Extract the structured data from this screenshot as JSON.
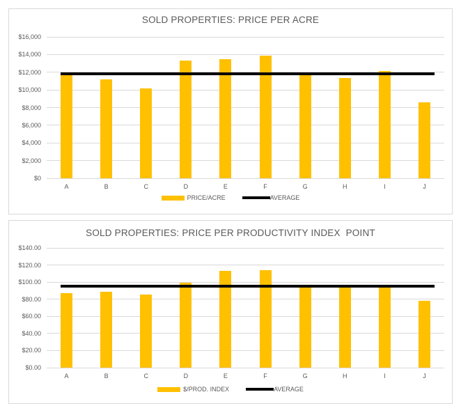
{
  "colors": {
    "bar": "#FFC000",
    "average_line": "#000000",
    "gridline": "#D9D9D9",
    "panel_border": "#D9D9D9",
    "axis_text": "#595959",
    "title_text": "#595959",
    "background": "#FFFFFF"
  },
  "chart_data": [
    {
      "type": "bar",
      "title": "SOLD PROPERTIES: PRICE PER ACRE",
      "categories": [
        "A",
        "B",
        "C",
        "D",
        "E",
        "F",
        "G",
        "H",
        "I",
        "J"
      ],
      "series": [
        {
          "name": "PRICE/ACRE",
          "type": "bar",
          "color": "#FFC000",
          "values": [
            11900,
            11200,
            10150,
            13300,
            13450,
            13850,
            11700,
            11350,
            12150,
            8600
          ]
        },
        {
          "name": "AVERAGE",
          "type": "line",
          "color": "#000000",
          "value": 11800
        }
      ],
      "ylim": [
        0,
        16000
      ],
      "ytick_step": 2000,
      "yticks": [
        "$16,000",
        "$14,000",
        "$12,000",
        "$10,000",
        "$8,000",
        "$6,000",
        "$4,000",
        "$2,000",
        "$0"
      ],
      "grid": true,
      "legend_position": "bottom"
    },
    {
      "type": "bar",
      "title": "SOLD PROPERTIES: PRICE PER PRODUCTIVITY INDEX  POINT",
      "categories": [
        "A",
        "B",
        "C",
        "D",
        "E",
        "F",
        "G",
        "H",
        "I",
        "J"
      ],
      "series": [
        {
          "name": "$/PROD. INDEX",
          "type": "bar",
          "color": "#FFC000",
          "values": [
            87.5,
            89,
            85.5,
            99.5,
            113,
            114,
            96.5,
            95,
            93.5,
            78.5
          ]
        },
        {
          "name": "AVERAGE",
          "type": "line",
          "color": "#000000",
          "value": 95
        }
      ],
      "ylim": [
        0,
        140
      ],
      "ytick_step": 20,
      "yticks": [
        "$140.00",
        "$120.00",
        "$100.00",
        "$80.00",
        "$60.00",
        "$40.00",
        "$20.00",
        "$0.00"
      ],
      "grid": true,
      "legend_position": "bottom"
    }
  ]
}
